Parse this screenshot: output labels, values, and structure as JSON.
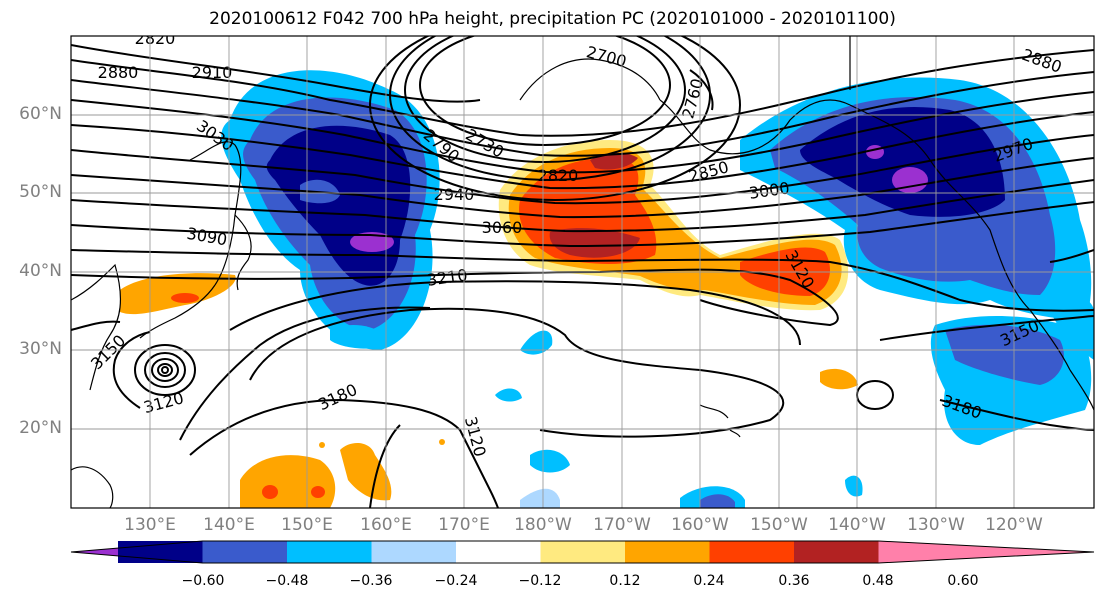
{
  "title": "2020100612 F042 700 hPa height, precipitation PC (2020101000 - 2020101100)",
  "lat_labels": [
    "60°N",
    "50°N",
    "40°N",
    "30°N",
    "20°N"
  ],
  "lon_labels": [
    "130°E",
    "140°E",
    "150°E",
    "160°E",
    "170°E",
    "180°W",
    "170°W",
    "160°W",
    "150°W",
    "140°W",
    "130°W",
    "120°W"
  ],
  "contour_labels": [
    "2820",
    "2880",
    "2910",
    "3030",
    "2790",
    "2730",
    "2700",
    "2760",
    "2820",
    "2850",
    "2940",
    "3000",
    "3060",
    "3090",
    "3210",
    "3120",
    "2880",
    "2970",
    "3150",
    "3120",
    "3180",
    "3120",
    "3180",
    "3150"
  ],
  "colorbar": {
    "colors": [
      "#9b30d0",
      "#000088",
      "#3a5bcc",
      "#00bfff",
      "#add8ff",
      "#ffffff",
      "#ffea80",
      "#ffa500",
      "#ff4000",
      "#b22222",
      "#ff80aa"
    ],
    "tick_labels": [
      "−0.60",
      "−0.48",
      "−0.36",
      "−0.24",
      "−0.12",
      "0.12",
      "0.24",
      "0.36",
      "0.48",
      "0.60"
    ]
  }
}
